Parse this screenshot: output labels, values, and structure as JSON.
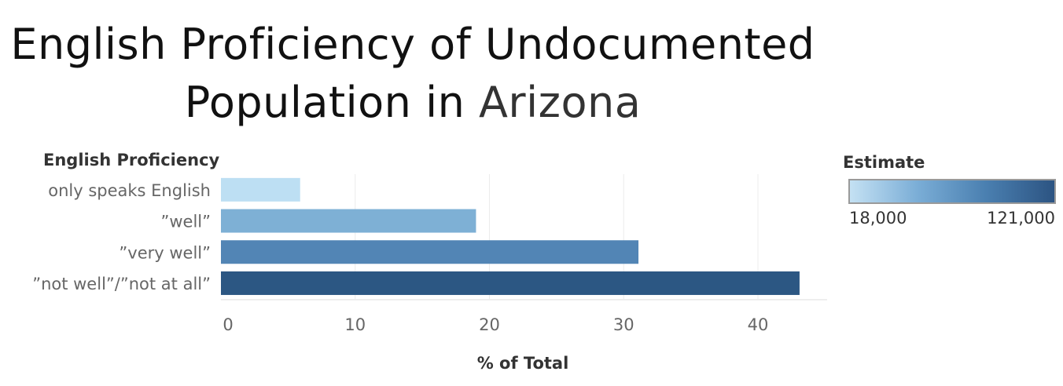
{
  "title": {
    "line1": "English Proficiency of Undocumented",
    "line2_prefix": "Population in",
    "line2_highlight": "Arizona"
  },
  "row_header": "English Proficiency",
  "legend": {
    "title": "Estimate",
    "min_label": "18,000",
    "max_label": "121,000",
    "min_color": "#c4e1f3",
    "max_color": "#2c5482"
  },
  "chart_data": {
    "type": "bar",
    "orientation": "horizontal",
    "categories": [
      "only speaks English",
      "”well”",
      "”very well”",
      "”not well”/”not at all”"
    ],
    "values": [
      5.9,
      19.0,
      31.1,
      43.1
    ],
    "colors": [
      "#bddff3",
      "#7eb0d5",
      "#5285b5",
      "#2c5783"
    ],
    "xlabel": "% of Total",
    "ylabel": "English Proficiency",
    "xticks": [
      0,
      10,
      20,
      30,
      40
    ],
    "xlim": [
      0,
      45
    ],
    "grid": true,
    "legend": "top-right"
  }
}
